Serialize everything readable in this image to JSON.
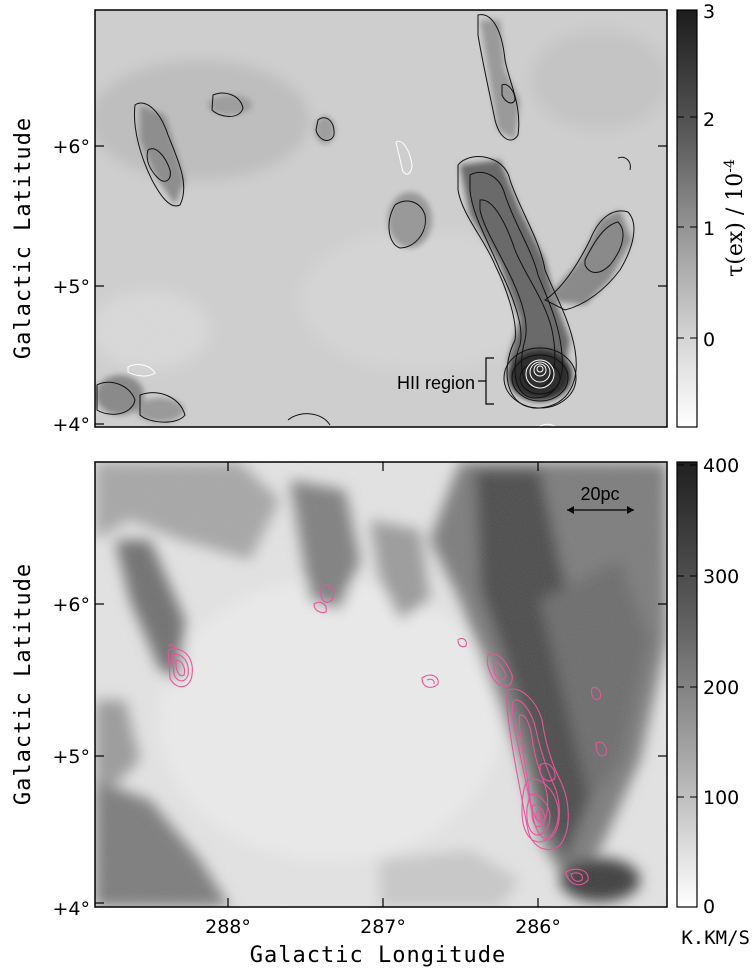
{
  "figure": {
    "top_panel": {
      "ylabel": "Galactic Latitude",
      "yticks": [
        "+6°",
        "+5°",
        "+4°"
      ],
      "annotation": "HII region",
      "colorbar": {
        "ticks": [
          "3",
          "2",
          "1",
          "0"
        ],
        "title_main": "τ(ex) / 10",
        "title_exp": "-4",
        "colormap": "grayscale"
      }
    },
    "bottom_panel": {
      "ylabel": "Galactic Latitude",
      "yticks": [
        "+6°",
        "+5°",
        "+4°"
      ],
      "xticks": [
        "288°",
        "287°",
        "286°"
      ],
      "xlabel": "Galactic Longitude",
      "scalebar": "20pc",
      "contour_color": "#e8559a",
      "colorbar": {
        "ticks": [
          "400",
          "300",
          "200",
          "100",
          "0"
        ],
        "unit": "K.KM/S",
        "colormap": "grayscale"
      }
    }
  }
}
